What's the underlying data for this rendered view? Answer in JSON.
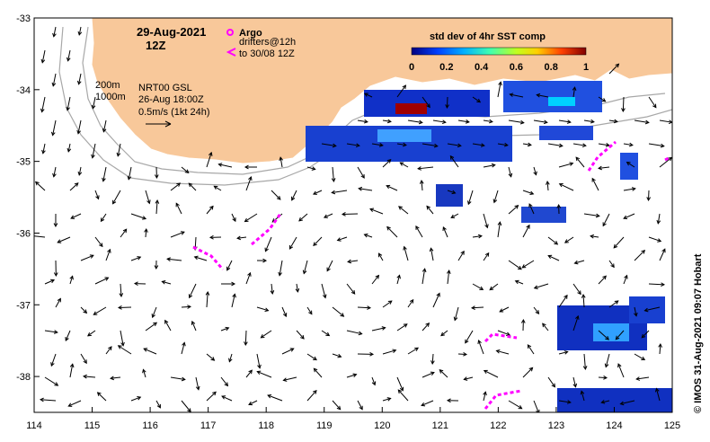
{
  "map": {
    "date": "29-Aug-2021",
    "hour": "12Z",
    "legend_argo": "Argo",
    "legend_drifters_line1": "drifters@12h",
    "legend_drifters_line2": "to 30/08 12Z",
    "depth_label_1": "200m",
    "depth_label_2": "1000m",
    "product_line1": "NRT00 GSL",
    "product_line2": "26-Aug 18:00Z",
    "product_line3": "0.5m/s (1kt 24h)",
    "colorbar_title": "std dev of 4hr SST comp",
    "colorbar_ticks": [
      "0",
      "0.2",
      "0.4",
      "0.6",
      "0.8",
      "1"
    ],
    "credit": "© IMOS 31-Aug-2021 09:07 Hobart",
    "x_ticks": [
      "114",
      "115",
      "116",
      "117",
      "118",
      "119",
      "120",
      "121",
      "122",
      "123",
      "124",
      "125"
    ],
    "y_ticks": [
      "-33",
      "-34",
      "-35",
      "-36",
      "-37",
      "-38"
    ],
    "x_range": [
      114,
      125
    ],
    "y_range": [
      -38.5,
      -33
    ],
    "colors": {
      "land": "#f8c89a",
      "argo_drifter": "#ff00ff",
      "isobath": "#a8a8a8",
      "colorbar": [
        "#000080",
        "#0050ff",
        "#00c0ff",
        "#40ff80",
        "#c0ff00",
        "#ffc000",
        "#ff4000",
        "#800000"
      ]
    }
  }
}
